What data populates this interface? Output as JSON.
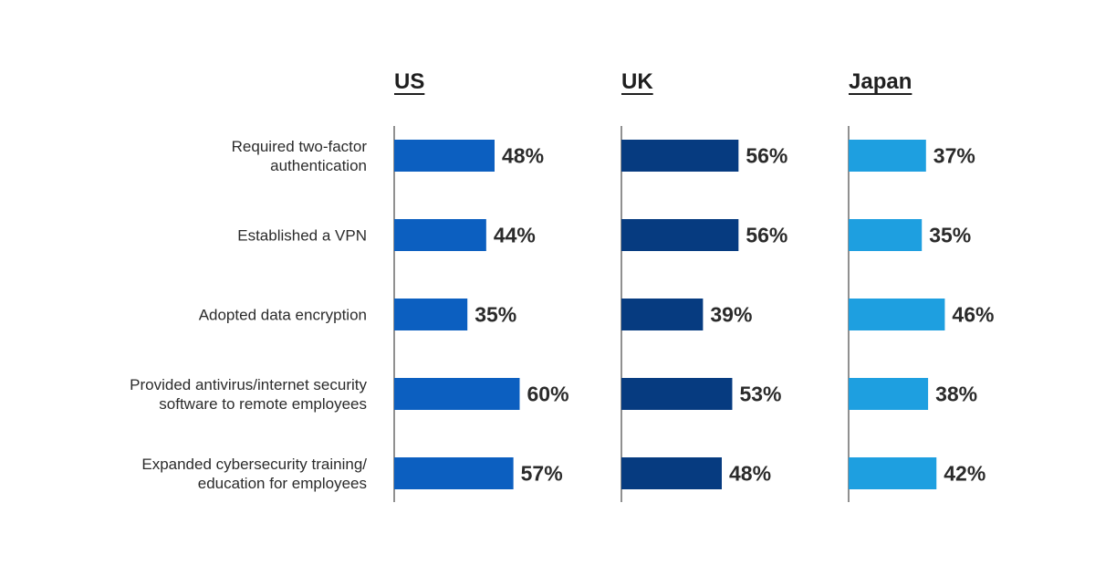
{
  "chart_data": {
    "type": "bar",
    "orientation": "horizontal",
    "categories": [
      [
        "Required two-factor",
        "authentication"
      ],
      [
        "Established a VPN"
      ],
      [
        "Adopted data encryption"
      ],
      [
        "Provided antivirus/internet security",
        "software to remote employees"
      ],
      [
        "Expanded cybersecurity training/",
        "education for employees"
      ]
    ],
    "series": [
      {
        "name": "US",
        "color": "#0c5fc0",
        "values": [
          48,
          44,
          35,
          60,
          57
        ]
      },
      {
        "name": "UK",
        "color": "#063b80",
        "values": [
          56,
          56,
          39,
          53,
          48
        ]
      },
      {
        "name": "Japan",
        "color": "#1e9fe0",
        "values": [
          37,
          35,
          46,
          38,
          42
        ]
      }
    ],
    "value_suffix": "%",
    "xlim": [
      0,
      100
    ],
    "grid": false,
    "legend": "none"
  }
}
